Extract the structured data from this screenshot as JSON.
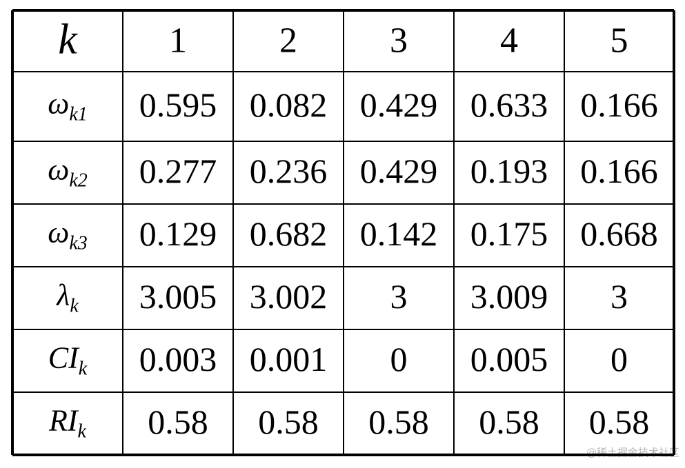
{
  "table": {
    "header": [
      "k",
      "1",
      "2",
      "3",
      "4",
      "5"
    ],
    "rows": [
      {
        "label": {
          "base": "ω",
          "sub": "k1"
        },
        "cells": [
          "0.595",
          "0.082",
          "0.429",
          "0.633",
          "0.166"
        ]
      },
      {
        "label": {
          "base": "ω",
          "sub": "k2"
        },
        "cells": [
          "0.277",
          "0.236",
          "0.429",
          "0.193",
          "0.166"
        ]
      },
      {
        "label": {
          "base": "ω",
          "sub": "k3"
        },
        "cells": [
          "0.129",
          "0.682",
          "0.142",
          "0.175",
          "0.668"
        ]
      },
      {
        "label": {
          "base": "λ",
          "sub": "k"
        },
        "cells": [
          "3.005",
          "3.002",
          "3",
          "3.009",
          "3"
        ]
      },
      {
        "label": {
          "base": "CI",
          "sub": "k"
        },
        "cells": [
          "0.003",
          "0.001",
          "0",
          "0.005",
          "0"
        ]
      },
      {
        "label": {
          "base": "RI",
          "sub": "k"
        },
        "cells": [
          "0.58",
          "0.58",
          "0.58",
          "0.58",
          "0.58"
        ]
      }
    ]
  },
  "watermark": "@稀土掘金技术社区"
}
